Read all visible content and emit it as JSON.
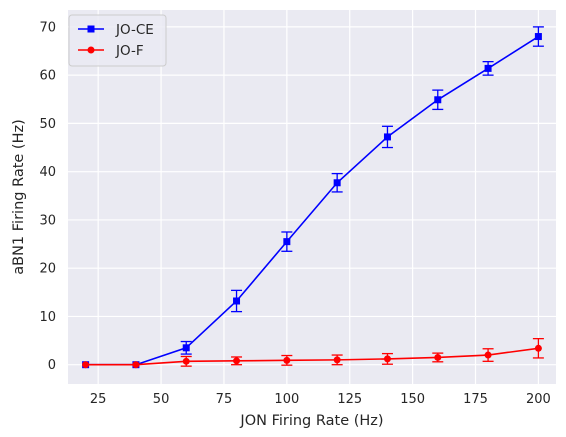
{
  "chart_data": {
    "type": "line",
    "xlabel": "JON Firing Rate (Hz)",
    "ylabel": "aBN1 Firing Rate (Hz)",
    "xlim": [
      13,
      207
    ],
    "ylim": [
      -4,
      73.5
    ],
    "xticks": [
      25,
      50,
      75,
      100,
      125,
      150,
      175,
      200
    ],
    "yticks": [
      0,
      10,
      20,
      30,
      40,
      50,
      60,
      70
    ],
    "grid": true,
    "legend": "top-left",
    "series": [
      {
        "name": "JO-CE",
        "color": "#0000ff",
        "marker": "square",
        "x": [
          20,
          40,
          60,
          80,
          100,
          120,
          140,
          160,
          180,
          200
        ],
        "y": [
          0,
          0,
          3.5,
          13.2,
          25.5,
          37.7,
          47.2,
          54.9,
          61.4,
          68.0
        ],
        "err": [
          0,
          0,
          1.3,
          2.2,
          2.0,
          1.9,
          2.2,
          2.0,
          1.4,
          2.0
        ]
      },
      {
        "name": "JO-F",
        "color": "#ff0000",
        "marker": "circle",
        "x": [
          20,
          40,
          60,
          80,
          100,
          120,
          140,
          160,
          180,
          200
        ],
        "y": [
          0,
          0,
          0.7,
          0.8,
          0.9,
          1.0,
          1.2,
          1.5,
          2.0,
          3.4
        ],
        "err": [
          0,
          0,
          1.0,
          0.8,
          1.0,
          1.0,
          1.1,
          0.9,
          1.3,
          2.0
        ]
      }
    ]
  }
}
